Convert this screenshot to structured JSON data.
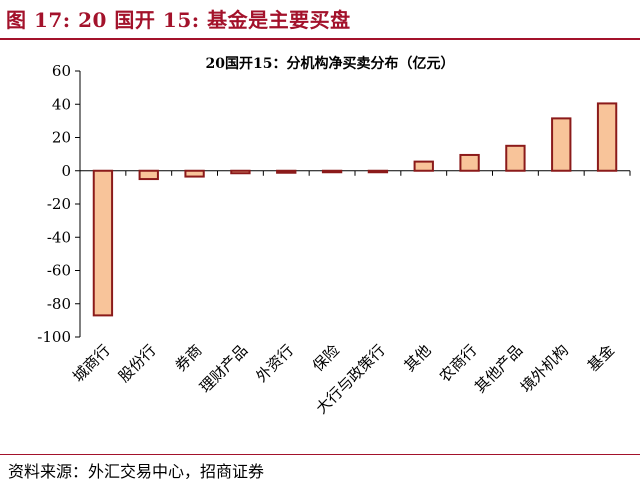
{
  "figure": {
    "label": "图 17:  20 国开 15:  基金是主要买盘",
    "source": "资料来源：外汇交易中心，招商证券"
  },
  "colors": {
    "accent": "#a3122b",
    "bar_fill": "#f8c49a",
    "bar_stroke": "#8b1a1a"
  },
  "chart_data": {
    "type": "bar",
    "title": "20国开15：分机构净买卖分布（亿元）",
    "xlabel": "",
    "ylabel": "",
    "ylim": [
      -100,
      60
    ],
    "yticks": [
      60,
      40,
      20,
      0,
      -20,
      -40,
      -60,
      -80,
      -100
    ],
    "grid": false,
    "categories": [
      "城商行",
      "股份行",
      "券商",
      "理财产品",
      "外资行",
      "保险",
      "大行与政策行",
      "其他",
      "农商行",
      "其他产品",
      "境外机构",
      "基金"
    ],
    "values": [
      -87,
      -5,
      -3.5,
      -1.5,
      -1.2,
      -0.8,
      -0.5,
      5.5,
      9.5,
      15,
      31.5,
      40.5
    ]
  }
}
